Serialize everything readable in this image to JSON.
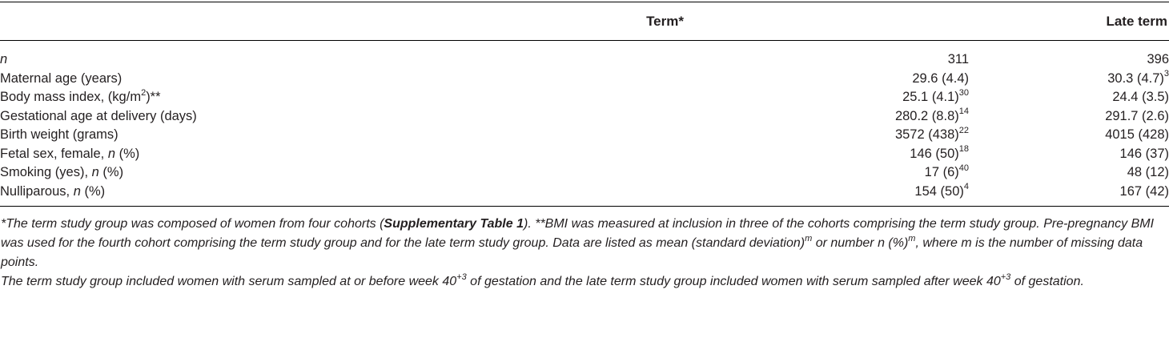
{
  "header": {
    "col_term": "Term*",
    "col_late": "Late term"
  },
  "rows": [
    {
      "label_italic": "n",
      "label": "",
      "label_sup": "",
      "label_tail": "",
      "term": "311",
      "term_sup": "",
      "late": "396",
      "late_sup": ""
    },
    {
      "label_italic": "",
      "label": "Maternal age (years)",
      "label_sup": "",
      "label_tail": "",
      "term": "29.6 (4.4)",
      "term_sup": "",
      "late": "30.3 (4.7)",
      "late_sup": "3"
    },
    {
      "label_italic": "",
      "label": "Body mass index, (kg/m",
      "label_sup": "2",
      "label_tail": ")**",
      "term": "25.1 (4.1)",
      "term_sup": "30",
      "late": "24.4 (3.5)",
      "late_sup": ""
    },
    {
      "label_italic": "",
      "label": "Gestational age at delivery (days)",
      "label_sup": "",
      "label_tail": "",
      "term": "280.2 (8.8)",
      "term_sup": "14",
      "late": "291.7 (2.6)",
      "late_sup": ""
    },
    {
      "label_italic": "",
      "label": "Birth weight (grams)",
      "label_sup": "",
      "label_tail": "",
      "term": "3572 (438)",
      "term_sup": "22",
      "late": "4015 (428)",
      "late_sup": ""
    },
    {
      "label_italic": "",
      "label": "Fetal sex, female, ",
      "label_sup": "",
      "label_tail": " (%)",
      "label_mid_italic": "n",
      "term": "146 (50)",
      "term_sup": "18",
      "late": "146 (37)",
      "late_sup": ""
    },
    {
      "label_italic": "",
      "label": "Smoking (yes), ",
      "label_sup": "",
      "label_tail": " (%)",
      "label_mid_italic": "n",
      "term": "17 (6)",
      "term_sup": "40",
      "late": "48 (12)",
      "late_sup": ""
    },
    {
      "label_italic": "",
      "label": "Nulliparous, ",
      "label_sup": "",
      "label_tail": " (%)",
      "label_mid_italic": "n",
      "term": "154 (50)",
      "term_sup": "4",
      "late": "167 (42)",
      "late_sup": ""
    }
  ],
  "footnote1": {
    "a": "*The term study group was composed of women from four cohorts (",
    "bold": "Supplementary Table 1",
    "b": "). **BMI was measured at inclusion in three of the cohorts comprising the term study group. Pre-pregnancy BMI was used for the fourth cohort comprising the term study group and for the late term study group. Data are listed as mean (standard deviation)",
    "sup1": "m",
    "c": " or number n (%)",
    "sup2": "m",
    "d": ", where m is the number of missing data points."
  },
  "footnote2": {
    "a": "The term study group included women with serum sampled at or before week 40",
    "sup1": "+3",
    "b": " of gestation and the late term study group included women with serum sampled after week 40",
    "sup2": "+3",
    "c": " of gestation."
  }
}
